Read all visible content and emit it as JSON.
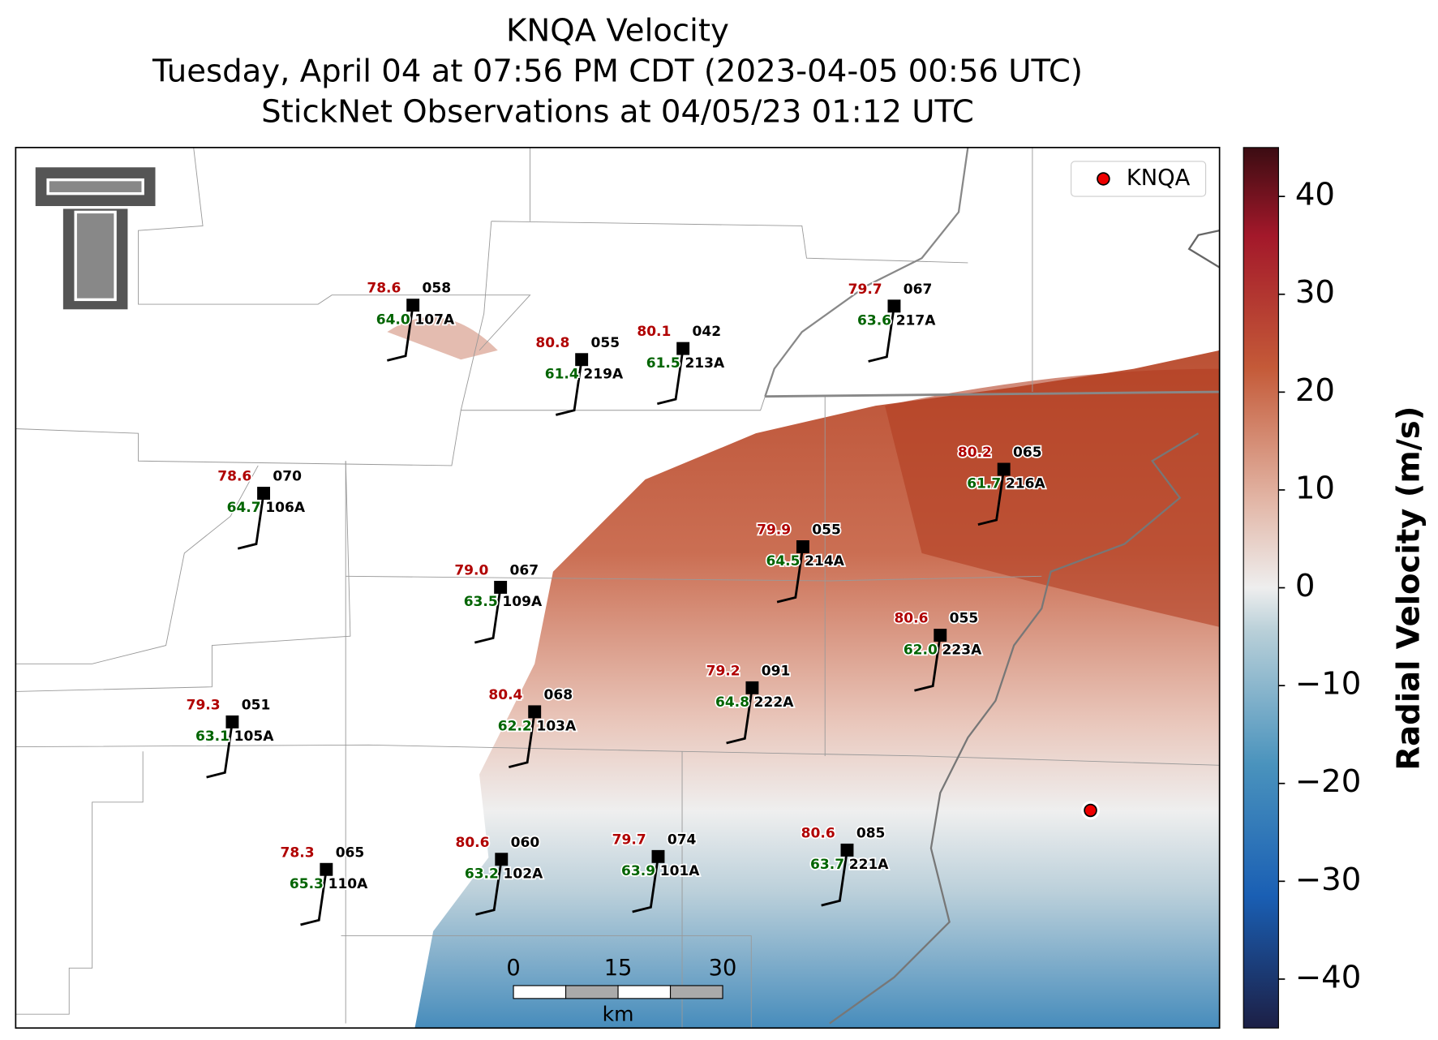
{
  "title": [
    "KNQA Velocity",
    "Tuesday, April 04 at 07:56 PM CDT (2023-04-05 00:56 UTC)",
    "StickNet Observations at 04/05/23 01:12 UTC"
  ],
  "legend": "KNQA",
  "colorbar": {
    "label": "Radial Velocity (m/s)",
    "lim": [
      -45,
      45
    ],
    "ticks": [
      {
        "value": -40,
        "label": "−40"
      },
      {
        "value": -30,
        "label": "−30"
      },
      {
        "value": -20,
        "label": "−20"
      },
      {
        "value": -10,
        "label": "−10"
      },
      0,
      10,
      20,
      30,
      40
    ]
  },
  "scalebar": {
    "ticks": [
      0,
      15,
      30
    ],
    "unit": "km"
  },
  "stations": [
    {
      "temp": "78.6",
      "dewpoint": "64.0",
      "code": "058",
      "id": "107A"
    },
    {
      "temp": "80.8",
      "dewpoint": "61.4",
      "code": "055",
      "id": "219A"
    },
    {
      "temp": "80.1",
      "dewpoint": "61.5",
      "code": "042",
      "id": "213A"
    },
    {
      "temp": "79.7",
      "dewpoint": "63.6",
      "code": "067",
      "id": "217A"
    },
    {
      "temp": "78.6",
      "dewpoint": "64.7",
      "code": "070",
      "id": "106A"
    },
    {
      "temp": "80.2",
      "dewpoint": "61.7",
      "code": "065",
      "id": "216A"
    },
    {
      "temp": "79.9",
      "dewpoint": "64.5",
      "code": "055",
      "id": "214A"
    },
    {
      "temp": "79.0",
      "dewpoint": "63.5",
      "code": "067",
      "id": "109A"
    },
    {
      "temp": "80.6",
      "dewpoint": "62.0",
      "code": "055",
      "id": "223A"
    },
    {
      "temp": "79.2",
      "dewpoint": "64.8",
      "code": "091",
      "id": "222A"
    },
    {
      "temp": "80.4",
      "dewpoint": "62.2",
      "code": "068",
      "id": "103A"
    },
    {
      "temp": "79.3",
      "dewpoint": "63.1",
      "code": "051",
      "id": "105A"
    },
    {
      "temp": "78.3",
      "dewpoint": "65.3",
      "code": "065",
      "id": "110A"
    },
    {
      "temp": "80.6",
      "dewpoint": "63.2",
      "code": "060",
      "id": "102A"
    },
    {
      "temp": "79.7",
      "dewpoint": "63.9",
      "code": "074",
      "id": "101A"
    },
    {
      "temp": "80.6",
      "dewpoint": "63.7",
      "code": "085",
      "id": "221A"
    }
  ]
}
